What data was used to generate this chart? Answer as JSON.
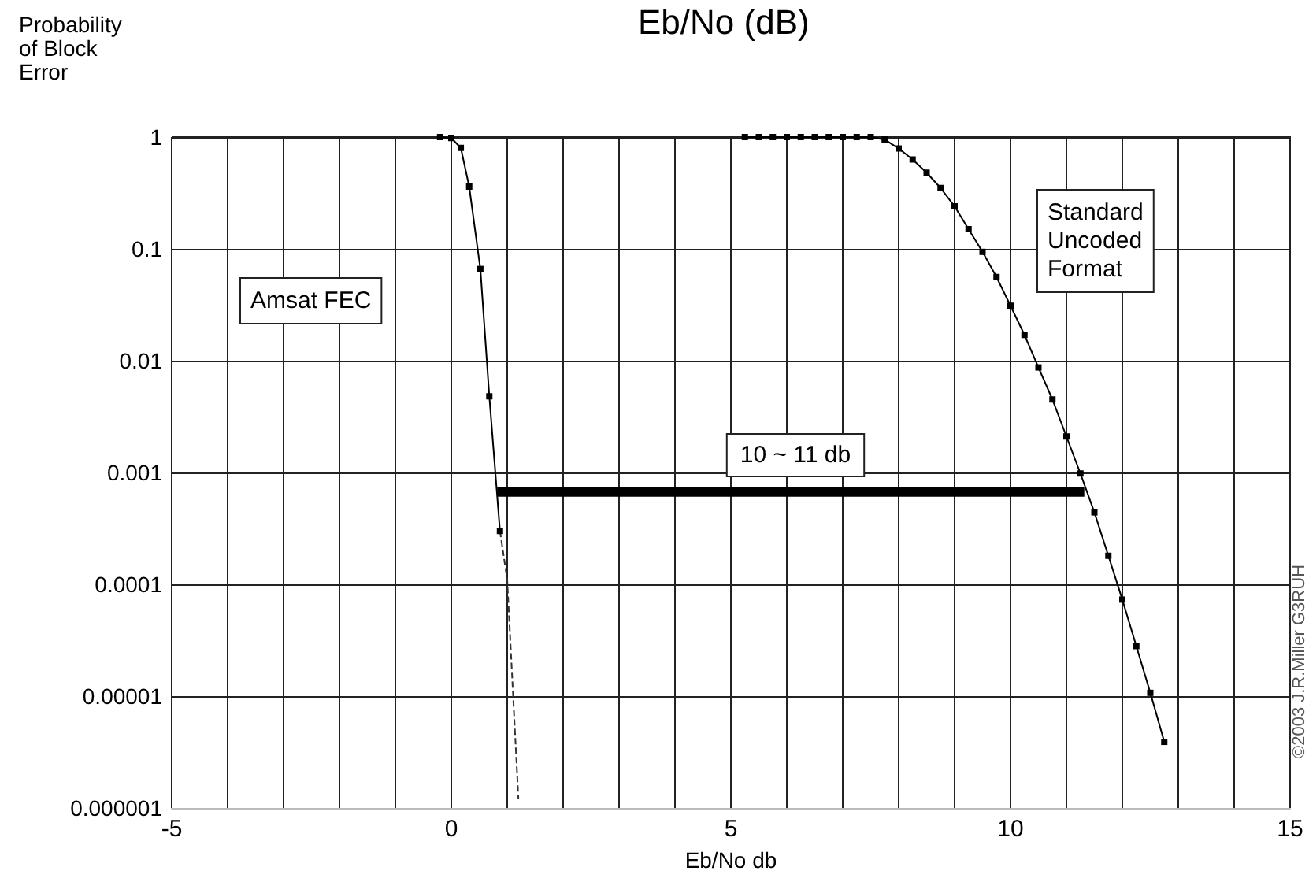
{
  "chart_data": {
    "type": "line",
    "title": "Eb/No (dB)",
    "xlabel": "Eb/No db",
    "ylabel": "Probability\nof Block\nError",
    "log": "y",
    "grid": true,
    "xlim": [
      -5,
      15
    ],
    "xticks": [
      -5,
      {
        "value": -4,
        "label": null
      },
      {
        "value": -3,
        "label": null
      },
      {
        "value": -2,
        "label": null
      },
      {
        "value": -1,
        "label": null
      },
      0,
      {
        "value": 1,
        "label": null
      },
      {
        "value": 2,
        "label": null
      },
      {
        "value": 3,
        "label": null
      },
      {
        "value": 4,
        "label": null
      },
      5,
      {
        "value": 6,
        "label": null
      },
      {
        "value": 7,
        "label": null
      },
      {
        "value": 8,
        "label": null
      },
      {
        "value": 9,
        "label": null
      },
      10,
      {
        "value": 11,
        "label": null
      },
      {
        "value": 12,
        "label": null
      },
      {
        "value": 13,
        "label": null
      },
      {
        "value": 14,
        "label": null
      },
      15
    ],
    "ylim": [
      1e-06,
      1
    ],
    "yticks": [
      {
        "value": 1e-06,
        "label": "0.000001"
      },
      {
        "value": 1e-05,
        "label": "0.00001"
      },
      0.0001,
      0.001,
      0.01,
      0.1,
      1
    ],
    "series": [
      {
        "color": "#000000",
        "marker": "square",
        "line_style": "solid",
        "x": [
          -0.2,
          0,
          0.17,
          0.32,
          0.52,
          0.68,
          0.87
        ],
        "values": [
          1,
          0.98,
          0.8,
          0.36,
          0.066,
          0.0048,
          0.0003
        ]
      },
      {
        "color": "#333333",
        "marker": "none",
        "line_style": "dashed",
        "x": [
          0.87,
          1.0,
          1.2
        ],
        "values": [
          0.0003,
          0.00011,
          1.2e-06
        ]
      },
      {
        "color": "#000000",
        "marker": "square",
        "line_style": "solid",
        "x": [
          5.25,
          5.5,
          5.75,
          6,
          6.25,
          6.5,
          6.75,
          7,
          7.25,
          7.5,
          7.75,
          8,
          8.25,
          8.5,
          8.75,
          9,
          9.25,
          9.5,
          9.75,
          10,
          10.25,
          10.5,
          10.75,
          11,
          11.25,
          11.5,
          11.75,
          12,
          12.25,
          12.5,
          12.75
        ],
        "values": [
          1,
          1,
          1,
          1,
          1,
          1,
          1,
          1,
          1,
          1,
          0.95,
          0.79,
          0.63,
          0.48,
          0.35,
          0.24,
          0.15,
          0.094,
          0.056,
          0.031,
          0.017,
          0.0087,
          0.0045,
          0.0021,
          0.00098,
          0.00044,
          0.00018,
          7.3e-05,
          2.8e-05,
          1.07e-05,
          3.9e-06
        ]
      },
      {
        "color": "#000000",
        "marker": "none",
        "line_style": "solid",
        "x": [
          0.82,
          11.32
        ],
        "values": [
          0.00067,
          0.00067
        ]
      }
    ],
    "annotations": [
      "Amsat FEC",
      "Standard\nUncoded\nFormat",
      "10 ~ 11 db",
      "©2003 J.R.Miller G3RUH"
    ]
  }
}
